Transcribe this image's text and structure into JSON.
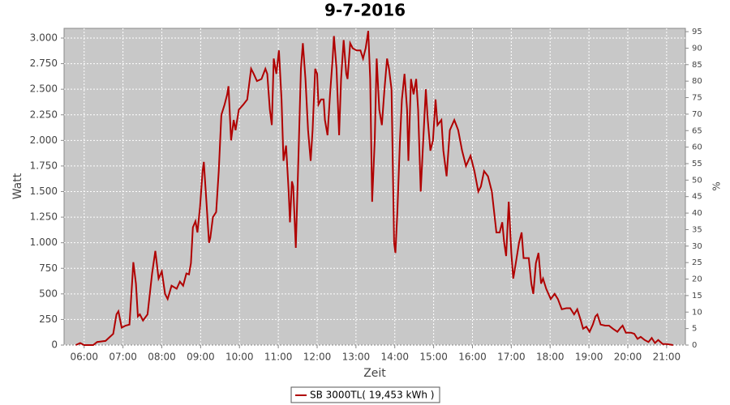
{
  "chart_data": {
    "type": "line",
    "title": "9-7-2016",
    "x_label": "Zeit",
    "y_label": "Watt",
    "y2_label": "%",
    "x": [
      "05:47",
      "05:54",
      "06:00",
      "06:14",
      "06:20",
      "06:33",
      "06:45",
      "06:50",
      "06:53",
      "06:58",
      "07:04",
      "07:10",
      "07:14",
      "07:16",
      "07:20",
      "07:23",
      "07:26",
      "07:31",
      "07:38",
      "07:45",
      "07:50",
      "07:55",
      "08:00",
      "08:05",
      "08:09",
      "08:15",
      "08:23",
      "08:28",
      "08:33",
      "08:38",
      "08:42",
      "08:45",
      "08:48",
      "08:52",
      "08:55",
      "08:59",
      "09:03",
      "09:05",
      "09:09",
      "09:13",
      "09:15",
      "09:19",
      "09:24",
      "09:28",
      "09:32",
      "09:37",
      "09:41",
      "09:43",
      "09:47",
      "09:51",
      "09:54",
      "09:59",
      "10:06",
      "10:12",
      "10:18",
      "10:22",
      "10:27",
      "10:34",
      "10:40",
      "10:43",
      "10:47",
      "10:50",
      "10:53",
      "10:57",
      "11:01",
      "11:05",
      "11:08",
      "11:12",
      "11:16",
      "11:18",
      "11:21",
      "11:23",
      "11:27",
      "11:31",
      "11:35",
      "11:38",
      "11:42",
      "11:46",
      "11:50",
      "11:53",
      "11:57",
      "12:00",
      "12:02",
      "12:06",
      "12:10",
      "12:12",
      "12:16",
      "12:20",
      "12:24",
      "12:26",
      "12:30",
      "12:34",
      "12:37",
      "12:41",
      "12:45",
      "12:47",
      "12:51",
      "12:55",
      "13:01",
      "13:07",
      "13:11",
      "13:15",
      "13:19",
      "13:22",
      "13:25",
      "13:29",
      "13:32",
      "13:36",
      "13:40",
      "13:44",
      "13:48",
      "13:51",
      "13:55",
      "13:59",
      "14:01",
      "14:04",
      "14:08",
      "14:11",
      "14:15",
      "14:19",
      "14:21",
      "14:25",
      "14:29",
      "14:33",
      "14:36",
      "14:40",
      "14:44",
      "14:48",
      "14:51",
      "14:55",
      "14:59",
      "15:03",
      "15:06",
      "15:12",
      "15:15",
      "15:20",
      "15:25",
      "15:32",
      "15:38",
      "15:44",
      "15:50",
      "15:57",
      "16:03",
      "16:09",
      "16:13",
      "16:18",
      "16:24",
      "16:30",
      "16:37",
      "16:42",
      "16:46",
      "16:49",
      "16:52",
      "16:56",
      "17:00",
      "17:03",
      "17:07",
      "17:12",
      "17:16",
      "17:19",
      "17:23",
      "17:27",
      "17:31",
      "17:34",
      "17:38",
      "17:42",
      "17:46",
      "17:49",
      "17:54",
      "18:01",
      "18:07",
      "18:12",
      "18:18",
      "18:25",
      "18:31",
      "18:37",
      "18:42",
      "18:47",
      "18:51",
      "18:56",
      "19:01",
      "19:06",
      "19:10",
      "19:13",
      "19:18",
      "19:25",
      "19:31",
      "19:37",
      "19:44",
      "19:49",
      "19:52",
      "19:57",
      "20:05",
      "20:10",
      "20:15",
      "20:20",
      "20:26",
      "20:32",
      "20:37",
      "20:42",
      "20:47",
      "20:54",
      "21:00",
      "21:10"
    ],
    "series": [
      {
        "name": "SB 3000TL( 19,453 kWh )",
        "color": "#b00000",
        "values": [
          0,
          20,
          0,
          0,
          30,
          40,
          110,
          300,
          330,
          170,
          190,
          200,
          600,
          810,
          600,
          280,
          300,
          240,
          300,
          700,
          920,
          650,
          720,
          500,
          450,
          580,
          550,
          620,
          580,
          700,
          690,
          800,
          1150,
          1210,
          1100,
          1350,
          1700,
          1790,
          1400,
          1000,
          1050,
          1250,
          1300,
          1700,
          2250,
          2350,
          2450,
          2530,
          2000,
          2200,
          2100,
          2300,
          2350,
          2400,
          2700,
          2650,
          2580,
          2600,
          2700,
          2650,
          2300,
          2150,
          2800,
          2650,
          2880,
          2400,
          1800,
          1950,
          1500,
          1200,
          1600,
          1550,
          950,
          1800,
          2700,
          2950,
          2600,
          2100,
          1800,
          2100,
          2700,
          2650,
          2350,
          2400,
          2400,
          2200,
          2050,
          2450,
          2800,
          3020,
          2700,
          2050,
          2600,
          2980,
          2650,
          2600,
          2950,
          2900,
          2880,
          2880,
          2800,
          2900,
          3070,
          2600,
          1400,
          2000,
          2800,
          2300,
          2150,
          2500,
          2800,
          2700,
          2500,
          1000,
          900,
          1300,
          2000,
          2400,
          2650,
          2300,
          1800,
          2600,
          2450,
          2600,
          2300,
          1500,
          2000,
          2500,
          2200,
          1900,
          2000,
          2400,
          2150,
          2200,
          1900,
          1650,
          2100,
          2200,
          2100,
          1900,
          1750,
          1850,
          1700,
          1500,
          1550,
          1700,
          1650,
          1500,
          1100,
          1100,
          1200,
          1000,
          870,
          1400,
          900,
          650,
          800,
          1000,
          1100,
          850,
          850,
          850,
          600,
          500,
          800,
          900,
          600,
          650,
          550,
          450,
          500,
          450,
          350,
          360,
          360,
          300,
          350,
          250,
          160,
          180,
          130,
          200,
          280,
          300,
          200,
          190,
          190,
          160,
          130,
          170,
          190,
          120,
          120,
          110,
          60,
          80,
          50,
          30,
          70,
          20,
          50,
          10,
          10,
          0
        ]
      }
    ],
    "xlim": [
      "05:29",
      "21:29"
    ],
    "xticks": [
      "06:00",
      "07:00",
      "08:00",
      "09:00",
      "10:00",
      "11:00",
      "12:00",
      "13:00",
      "14:00",
      "15:00",
      "16:00",
      "17:00",
      "18:00",
      "19:00",
      "20:00",
      "21:00"
    ],
    "ylim": [
      0,
      3095
    ],
    "yticks": [
      0,
      250,
      500,
      750,
      {
        "value": 1000,
        "label": "1.000"
      },
      {
        "value": 1250,
        "label": "1.250"
      },
      {
        "value": 1500,
        "label": "1.500"
      },
      {
        "value": 1750,
        "label": "1.750"
      },
      {
        "value": 2000,
        "label": "2.000"
      },
      {
        "value": 2250,
        "label": "2.250"
      },
      {
        "value": 2500,
        "label": "2.500"
      },
      {
        "value": 2750,
        "label": "2.750"
      },
      {
        "value": 3000,
        "label": "3.000"
      }
    ],
    "y2lim": [
      0,
      96
    ],
    "y2ticks": [
      0,
      5,
      10,
      15,
      20,
      25,
      30,
      35,
      40,
      45,
      50,
      55,
      60,
      65,
      70,
      75,
      80,
      85,
      90,
      95
    ],
    "grid": true
  }
}
